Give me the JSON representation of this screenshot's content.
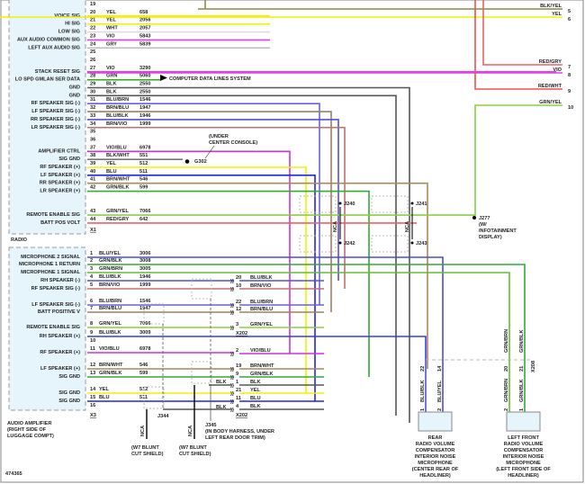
{
  "radio": {
    "name": "RADIO",
    "connector": "X1",
    "pins": [
      {
        "pin": "19",
        "label": "",
        "wire": "",
        "circuit": "",
        "color": ""
      },
      {
        "pin": "20",
        "label": "VOICE SIG",
        "wire": "YEL",
        "circuit": "658",
        "color": "#f2f200"
      },
      {
        "pin": "21",
        "label": "HI SIG",
        "wire": "YEL",
        "circuit": "2056",
        "color": "#f2f200"
      },
      {
        "pin": "22",
        "label": "LOW SIG",
        "wire": "WHT",
        "circuit": "2057",
        "color": "#dddddd"
      },
      {
        "pin": "23",
        "label": "AUX AUDIO COMMON SIG",
        "wire": "VIO",
        "circuit": "5843",
        "color": "#e83ce8"
      },
      {
        "pin": "24",
        "label": "LEFT AUX AUDIO SIG",
        "wire": "GRY",
        "circuit": "5839",
        "color": "#bbbbbb"
      },
      {
        "pin": "25",
        "label": "",
        "wire": "",
        "circuit": "",
        "color": ""
      },
      {
        "pin": "26",
        "label": "",
        "wire": "",
        "circuit": "",
        "color": ""
      },
      {
        "pin": "27",
        "label": "STACK RESET SIG",
        "wire": "VIO",
        "circuit": "3290",
        "color": "#e83ce8"
      },
      {
        "pin": "28",
        "label": "LO SPD GMLAN SER DATA",
        "wire": "GRN",
        "circuit": "5060",
        "color": "#33aa22"
      },
      {
        "pin": "29",
        "label": "GND",
        "wire": "BLK",
        "circuit": "2550",
        "color": "#555555"
      },
      {
        "pin": "30",
        "label": "GND",
        "wire": "BLK",
        "circuit": "2550",
        "color": "#555555"
      },
      {
        "pin": "31",
        "label": "RF SPEAKER SIG (-)",
        "wire": "BLU/BRN",
        "circuit": "1546",
        "color": "#6a60d8"
      },
      {
        "pin": "32",
        "label": "LF SPEAKER SIG (-)",
        "wire": "BRN/BLU",
        "circuit": "1947",
        "color": "#9a8060"
      },
      {
        "pin": "33",
        "label": "RR SPEAKER SIG (-)",
        "wire": "BLU/BLK",
        "circuit": "1946",
        "color": "#5050d8"
      },
      {
        "pin": "34",
        "label": "LR SPEAKER SIG (-)",
        "wire": "BRN/VIO",
        "circuit": "1999",
        "color": "#c07070"
      },
      {
        "pin": "35",
        "label": "",
        "wire": "",
        "circuit": "",
        "color": ""
      },
      {
        "pin": "36",
        "label": "",
        "wire": "",
        "circuit": "",
        "color": ""
      },
      {
        "pin": "37",
        "label": "AMPLIFIER CTRL",
        "wire": "VIO/BLU",
        "circuit": "6978",
        "color": "#d030e0"
      },
      {
        "pin": "38",
        "label": "SIG GND",
        "wire": "BLK/WHT",
        "circuit": "551",
        "color": "#777777"
      },
      {
        "pin": "39",
        "label": "RF SPEAKER (+)",
        "wire": "YEL",
        "circuit": "512",
        "color": "#f2f200"
      },
      {
        "pin": "40",
        "label": "LF SPEAKER (+)",
        "wire": "BLU",
        "circuit": "511",
        "color": "#2222ee"
      },
      {
        "pin": "41",
        "label": "RR SPEAKER (+)",
        "wire": "BRN/WHT",
        "circuit": "546",
        "color": "#a88858"
      },
      {
        "pin": "42",
        "label": "LR SPEAKER (+)",
        "wire": "GRN/BLK",
        "circuit": "599",
        "color": "#33aa33"
      },
      {
        "pin": "43",
        "label": "REMOTE ENABLE SIG",
        "wire": "GRN/YEL",
        "circuit": "7066",
        "color": "#88d040"
      },
      {
        "pin": "44",
        "label": "BATT POS VOLT",
        "wire": "RED/GRY",
        "circuit": "642",
        "color": "#f06060"
      }
    ],
    "data_link": "COMPUTER DATA LINES SYSTEM",
    "ground": "G302",
    "ground_note": "(UNDER CENTER CONSOLE)"
  },
  "amplifier": {
    "name": "AUDIO AMPLIFIER (RIGHT SIDE OF LUGGAGE COMPT)",
    "name_lines": [
      "AUDIO AMPLIFIER",
      "(RIGHT SIDE OF",
      "LUGGAGE COMPT)"
    ],
    "connector": "X3",
    "pins": [
      {
        "pin": "1",
        "label": "MICROPHONE 2 SIGNAL",
        "wire": "BLU/YEL",
        "circuit": "3006",
        "color": "#4a4ae0"
      },
      {
        "pin": "2",
        "label": "MICROPHONE 1 RETURN",
        "wire": "GRN/BLK",
        "circuit": "3008",
        "color": "#33aa33"
      },
      {
        "pin": "3",
        "label": "MICROPHONE 1 SIGNAL",
        "wire": "GRN/BRN",
        "circuit": "3005",
        "color": "#66bb33"
      },
      {
        "pin": "4",
        "label": "RH SPEAKER (-)",
        "wire": "BLU/BLK",
        "circuit": "1946",
        "color": "#5050d8"
      },
      {
        "pin": "5",
        "label": "RF SPEAKER SIG (-)",
        "wire": "BRN/VIO",
        "circuit": "1999",
        "color": "#c07070"
      },
      {
        "pin": "6",
        "label": "LF SPEAKER SIG (-)",
        "wire": "BLU/BRN",
        "circuit": "1546",
        "color": "#6a60d8"
      },
      {
        "pin": "7",
        "label": "BATT POSITIVE V",
        "wire": "BRN/BLU",
        "circuit": "1947",
        "color": "#9a8060"
      },
      {
        "pin": "8",
        "label": "REMOTE ENABLE SIG",
        "wire": "GRN/YEL",
        "circuit": "7066",
        "color": "#88d040"
      },
      {
        "pin": "9",
        "label": "RH SPEAKER (+)",
        "wire": "BLU/BLK",
        "circuit": "3009",
        "color": "#3a3ae8"
      },
      {
        "pin": "10",
        "label": "",
        "wire": "",
        "circuit": "",
        "color": ""
      },
      {
        "pin": "11",
        "label": "RF SPEAKER (+)",
        "wire": "VIO/BLU",
        "circuit": "6978",
        "color": "#d030e0"
      },
      {
        "pin": "12",
        "label": "LF SPEAKER (+)",
        "wire": "BRN/WHT",
        "circuit": "546",
        "color": "#a88858"
      },
      {
        "pin": "13",
        "label": "SIG GND",
        "wire": "GRN/BLK",
        "circuit": "599",
        "color": "#33aa33"
      },
      {
        "pin": "14",
        "label": "SIG GND",
        "wire": "YEL",
        "circuit": "512",
        "color": "#f2f200"
      },
      {
        "pin": "15",
        "label": "SIG GND",
        "wire": "BLU",
        "circuit": "511",
        "color": "#2222ee"
      },
      {
        "pin": "16",
        "label": "",
        "wire": "",
        "circuit": "",
        "color": ""
      }
    ]
  },
  "x202": {
    "name": "X202",
    "pins": [
      {
        "pin": "20",
        "wire": "BLU/BLK"
      },
      {
        "pin": "10",
        "wire": "BRN/VIO"
      },
      {
        "pin": "22",
        "wire": "BLU/BRN"
      },
      {
        "pin": "12",
        "wire": "BRN/BLU"
      },
      {
        "pin": "3",
        "wire": "GRN/YEL"
      },
      {
        "pin": "2",
        "wire": "VIO/BLU"
      },
      {
        "pin": "19",
        "wire": "BRN/WHT"
      },
      {
        "pin": "9",
        "wire": "GRN/BLK"
      },
      {
        "pin": "1",
        "wire": "BLK"
      },
      {
        "pin": "21",
        "wire": "YEL"
      },
      {
        "pin": "11",
        "wire": "BLU"
      },
      {
        "pin": "4",
        "wire": "BLK"
      }
    ],
    "left_wire_labels": [
      "BLK",
      "BLK"
    ]
  },
  "right_pins": [
    {
      "pin": "5",
      "wire": "BLK/YEL",
      "color": "#8a8a40"
    },
    {
      "pin": "6",
      "wire": "YEL",
      "color": "#f2f200"
    },
    {
      "pin": "7",
      "wire": "RED/GRY",
      "color": "#f06060"
    },
    {
      "pin": "8",
      "wire": "VIO",
      "color": "#e83ce8"
    },
    {
      "pin": "9",
      "wire": "RED/WHT",
      "color": "#f05050"
    },
    {
      "pin": "10",
      "wire": "GRN/YEL",
      "color": "#88d040"
    }
  ],
  "splices": {
    "j240": "J240",
    "j241": "J241",
    "j242": "J242",
    "j243": "J243",
    "j277": [
      "J277",
      "(W/",
      "INFOTAINMENT",
      "DISPLAY)"
    ],
    "j344": "J344",
    "j345": [
      "J345",
      "(IN BODY HARNESS, UNDER",
      "LEFT REAR DOOR TRIM)"
    ],
    "nca": "NCA",
    "w7_note": [
      "(W7 BLUNT",
      "CUT SHIELD)"
    ]
  },
  "microphones": [
    {
      "name": [
        "REAR",
        "RADIO VOLUME",
        "COMPENSATOR",
        "INTERIOR NOISE",
        "MICROPHONE",
        "(CENTER REAR OF",
        "HEADLINER)"
      ],
      "pins": [
        {
          "pin": "1",
          "wire": "BLU/BLK",
          "x208_pin": "22"
        },
        {
          "pin": "2",
          "wire": "BLU/YEL",
          "x208_pin": "14"
        }
      ]
    },
    {
      "name": [
        "LEFT FRONT",
        "RADIO VOLUME",
        "COMPENSATOR",
        "INTERIOR NOISE",
        "MICROPHONE",
        "(LEFT FRONT SIDE OF",
        "HEADLINER)"
      ],
      "pins": [
        {
          "pin": "2",
          "wire": "GRN/BRN",
          "x208_pin": "20"
        },
        {
          "pin": "1",
          "wire": "GRN/BLK",
          "x208_pin": "21"
        }
      ]
    }
  ],
  "x208": "X208",
  "figure_id": "474365"
}
